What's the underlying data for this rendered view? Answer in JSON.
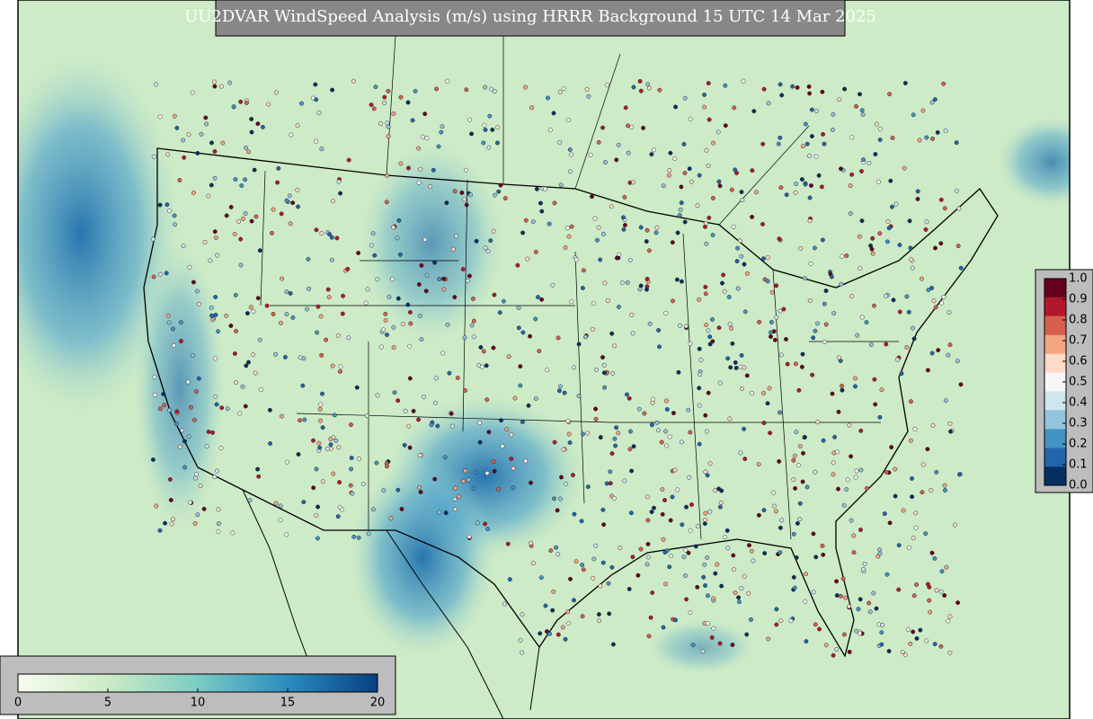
{
  "title": "UU2DVAR WindSpeed Analysis (m/s) using HRRR Background 15 UTC 14 Mar 2025",
  "wind_colorbar": {
    "range": [
      0,
      20
    ],
    "ticks": [
      0,
      5,
      10,
      15,
      20
    ],
    "colors": [
      "#f7fcf0",
      "#ccebc5",
      "#7bccc4",
      "#2b8cbe",
      "#084081"
    ]
  },
  "obs_colorbar": {
    "range": [
      0,
      1
    ],
    "ticks": [
      {
        "value": 0,
        "label": "0.0"
      },
      0.1,
      0.2,
      0.3,
      0.4,
      0.5,
      0.6,
      0.7,
      0.8,
      0.9,
      {
        "value": 1,
        "label": "1.0"
      }
    ],
    "colors": [
      "#053061",
      "#2166ac",
      "#4393c3",
      "#92c5de",
      "#d1e5f0",
      "#f7f7f7",
      "#fddbc7",
      "#f4a582",
      "#d6604d",
      "#b2182b",
      "#67001f"
    ]
  }
}
